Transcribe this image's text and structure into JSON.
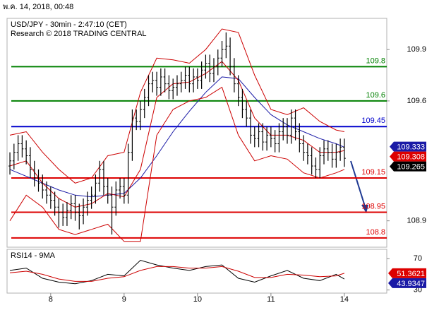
{
  "header": {
    "timestamp": "พ.ค. 14, 2018, 00:48"
  },
  "chart_data": [
    {
      "type": "ohlc",
      "title": "USD/JPY - 30min - 2:47:10 (CET)",
      "subtitle": "Research © 2018 TRADING CENTRAL",
      "x": [
        0,
        1,
        2,
        3,
        4,
        5,
        6,
        7,
        8,
        9,
        10,
        11,
        12,
        13,
        14,
        15,
        16,
        17,
        18,
        19,
        20,
        21,
        22,
        23,
        24,
        25,
        26,
        27,
        28,
        29,
        30,
        31,
        32,
        33,
        34,
        35,
        36,
        37,
        38,
        39,
        40,
        41,
        42,
        43,
        44,
        45,
        46,
        47,
        48,
        49,
        50,
        51,
        52,
        53,
        54,
        55,
        56,
        57,
        58,
        59,
        60,
        61,
        62,
        63,
        64,
        65,
        66,
        67,
        68,
        69,
        70,
        71,
        72,
        73,
        74,
        75,
        76,
        77,
        78,
        79,
        80,
        81,
        82
      ],
      "open": [
        109.22,
        109.25,
        109.3,
        109.35,
        109.32,
        109.28,
        109.2,
        109.15,
        109.12,
        109.08,
        109.05,
        109.02,
        108.98,
        108.95,
        108.92,
        108.96,
        109.0,
        108.95,
        108.93,
        108.98,
        109.02,
        109.05,
        109.12,
        109.2,
        109.1,
        109.05,
        108.98,
        109.08,
        109.1,
        109.05,
        109.3,
        109.5,
        109.48,
        109.55,
        109.62,
        109.7,
        109.72,
        109.68,
        109.74,
        109.7,
        109.66,
        109.68,
        109.7,
        109.72,
        109.75,
        109.7,
        109.74,
        109.72,
        109.78,
        109.82,
        109.76,
        109.8,
        109.85,
        109.9,
        109.92,
        109.8,
        109.7,
        109.62,
        109.55,
        109.5,
        109.4,
        109.38,
        109.42,
        109.36,
        109.4,
        109.38,
        109.35,
        109.42,
        109.45,
        109.4,
        109.5,
        109.42,
        109.35,
        109.3,
        109.28,
        109.22,
        109.2,
        109.28,
        109.32,
        109.3,
        109.26,
        109.3,
        109.33
      ],
      "high": [
        109.3,
        109.35,
        109.4,
        109.4,
        109.37,
        109.33,
        109.25,
        109.2,
        109.17,
        109.13,
        109.1,
        109.07,
        109.03,
        109.0,
        109.01,
        109.05,
        109.05,
        109.0,
        109.03,
        109.07,
        109.1,
        109.17,
        109.25,
        109.25,
        109.15,
        109.1,
        109.13,
        109.15,
        109.15,
        109.35,
        109.55,
        109.55,
        109.6,
        109.67,
        109.75,
        109.77,
        109.77,
        109.79,
        109.79,
        109.75,
        109.73,
        109.75,
        109.77,
        109.8,
        109.8,
        109.79,
        109.79,
        109.83,
        109.87,
        109.87,
        109.85,
        109.9,
        109.95,
        110.0,
        109.97,
        109.85,
        109.75,
        109.67,
        109.6,
        109.55,
        109.45,
        109.47,
        109.47,
        109.45,
        109.45,
        109.43,
        109.47,
        109.5,
        109.5,
        109.55,
        109.55,
        109.47,
        109.4,
        109.35,
        109.33,
        109.27,
        109.33,
        109.37,
        109.37,
        109.35,
        109.35,
        109.38,
        109.38
      ],
      "low": [
        109.17,
        109.2,
        109.25,
        109.27,
        109.23,
        109.15,
        109.1,
        109.07,
        109.03,
        109.0,
        108.97,
        108.93,
        108.86,
        108.87,
        108.87,
        108.91,
        108.9,
        108.85,
        108.88,
        108.93,
        108.97,
        109.0,
        109.07,
        109.05,
        109.0,
        108.82,
        108.93,
        109.03,
        109.0,
        109.0,
        109.25,
        109.43,
        109.43,
        109.5,
        109.57,
        109.65,
        109.63,
        109.63,
        109.65,
        109.61,
        109.61,
        109.63,
        109.65,
        109.67,
        109.65,
        109.65,
        109.67,
        109.67,
        109.73,
        109.71,
        109.71,
        109.75,
        109.8,
        109.85,
        109.75,
        109.65,
        109.57,
        109.5,
        109.45,
        109.35,
        109.33,
        109.33,
        109.31,
        109.31,
        109.33,
        109.3,
        109.3,
        109.37,
        109.35,
        109.35,
        109.37,
        109.3,
        109.25,
        109.23,
        109.17,
        109.15,
        109.15,
        109.23,
        109.25,
        109.21,
        109.21,
        109.25,
        109.215
      ],
      "close": [
        109.25,
        109.3,
        109.35,
        109.32,
        109.28,
        109.2,
        109.15,
        109.12,
        109.08,
        109.05,
        109.02,
        108.98,
        108.95,
        108.92,
        108.96,
        109.0,
        108.95,
        108.93,
        108.98,
        109.02,
        109.05,
        109.12,
        109.2,
        109.1,
        109.05,
        108.98,
        109.08,
        109.1,
        109.05,
        109.3,
        109.5,
        109.48,
        109.55,
        109.62,
        109.7,
        109.72,
        109.68,
        109.74,
        109.7,
        109.66,
        109.68,
        109.7,
        109.72,
        109.75,
        109.7,
        109.74,
        109.72,
        109.78,
        109.82,
        109.76,
        109.8,
        109.85,
        109.9,
        109.92,
        109.8,
        109.7,
        109.62,
        109.55,
        109.5,
        109.4,
        109.38,
        109.42,
        109.36,
        109.4,
        109.38,
        109.35,
        109.42,
        109.45,
        109.4,
        109.5,
        109.42,
        109.35,
        109.3,
        109.28,
        109.22,
        109.2,
        109.28,
        109.32,
        109.3,
        109.26,
        109.3,
        109.33,
        109.265
      ],
      "color": "#000000",
      "lines": [
        {
          "color": "#1a1aa6",
          "x": [
            0,
            4,
            8,
            12,
            16,
            20,
            24,
            28,
            32,
            36,
            40,
            44,
            48,
            52,
            56,
            60,
            64,
            68,
            72,
            76,
            80,
            82
          ],
          "values": [
            109.2,
            109.16,
            109.12,
            109.08,
            109.05,
            109.04,
            109.05,
            109.06,
            109.15,
            109.28,
            109.42,
            109.54,
            109.65,
            109.74,
            109.73,
            109.62,
            109.52,
            109.46,
            109.42,
            109.38,
            109.35,
            109.33
          ]
        },
        {
          "color": "#cc0000",
          "x": [
            0,
            4,
            8,
            12,
            16,
            20,
            24,
            28,
            32,
            36,
            40,
            44,
            48,
            52,
            56,
            60,
            64,
            68,
            72,
            76,
            80,
            82
          ],
          "values": [
            109.4,
            109.42,
            109.3,
            109.2,
            109.12,
            109.15,
            109.28,
            109.3,
            109.65,
            109.85,
            109.84,
            109.82,
            109.9,
            110.02,
            110.0,
            109.75,
            109.55,
            109.52,
            109.56,
            109.48,
            109.43,
            109.42
          ]
        },
        {
          "color": "#cc0000",
          "x": [
            0,
            4,
            8,
            12,
            16,
            20,
            24,
            28,
            32,
            36,
            40,
            44,
            48,
            52,
            56,
            60,
            64,
            68,
            72,
            76,
            80,
            82
          ],
          "values": [
            109.22,
            109.25,
            109.12,
            109.03,
            108.98,
            109.0,
            109.06,
            109.04,
            109.2,
            109.62,
            109.7,
            109.71,
            109.76,
            109.83,
            109.72,
            109.5,
            109.4,
            109.4,
            109.37,
            109.3,
            109.3,
            109.31
          ]
        },
        {
          "color": "#cc0000",
          "x": [
            0,
            4,
            8,
            12,
            16,
            20,
            24,
            28,
            32,
            36,
            40,
            44,
            48,
            52,
            56,
            60,
            64,
            68,
            72,
            76,
            80,
            82
          ],
          "values": [
            108.9,
            109.05,
            108.98,
            108.85,
            108.82,
            108.85,
            108.88,
            108.78,
            108.78,
            109.4,
            109.55,
            109.6,
            109.62,
            109.68,
            109.4,
            109.25,
            109.28,
            109.26,
            109.18,
            109.15,
            109.18,
            109.2
          ]
        }
      ],
      "levels": [
        {
          "value": 109.8,
          "color": "#008000"
        },
        {
          "value": 109.6,
          "color": "#008000"
        },
        {
          "value": 109.45,
          "color": "#0000cc"
        },
        {
          "value": 109.15,
          "color": "#dd0000"
        },
        {
          "value": 108.95,
          "color": "#dd0000"
        },
        {
          "value": 108.8,
          "color": "#dd0000"
        }
      ],
      "price_labels": [
        {
          "value": 109.333,
          "color": "#1a1aa6"
        },
        {
          "value": 109.308,
          "color": "#dd0000"
        },
        {
          "value": 109.265,
          "color": "#000000"
        }
      ],
      "xlim": [
        -0.7,
        92.4
      ],
      "ylim": [
        108.746,
        110.082
      ],
      "yticks": [
        109.9,
        109.6,
        108.9
      ]
    },
    {
      "type": "line",
      "title": "RSI14 - 9MA",
      "series": [
        {
          "color": "#000000",
          "x": [
            0,
            4,
            8,
            12,
            16,
            20,
            24,
            28,
            32,
            36,
            40,
            44,
            48,
            52,
            56,
            60,
            64,
            68,
            72,
            76,
            80,
            82
          ],
          "values": [
            55,
            58,
            45,
            40,
            38,
            42,
            50,
            48,
            68,
            62,
            58,
            55,
            60,
            62,
            45,
            40,
            48,
            55,
            45,
            42,
            50,
            43.9347
          ]
        },
        {
          "color": "#cc0000",
          "x": [
            0,
            4,
            8,
            12,
            16,
            20,
            24,
            28,
            32,
            36,
            40,
            44,
            48,
            52,
            56,
            60,
            64,
            68,
            72,
            76,
            80,
            82
          ],
          "values": [
            52,
            54,
            50,
            44,
            41,
            41,
            45,
            47,
            55,
            60,
            60,
            58,
            58,
            60,
            54,
            46,
            46,
            50,
            49,
            47,
            48,
            51.3621
          ]
        }
      ],
      "value_boxes": [
        {
          "value": 51.3621,
          "color": "#dd0000"
        },
        {
          "value": 43.9347,
          "color": "#1a1aa6"
        }
      ],
      "xlim": [
        -0.7,
        92.4
      ],
      "ylim": [
        26,
        82
      ],
      "yticks": [
        70,
        30
      ],
      "xticks": [
        {
          "value": 10,
          "label": "8"
        },
        {
          "value": 28,
          "label": "9"
        },
        {
          "value": 46,
          "label": "10"
        },
        {
          "value": 64,
          "label": "11"
        },
        {
          "value": 82,
          "label": "14"
        }
      ]
    }
  ]
}
